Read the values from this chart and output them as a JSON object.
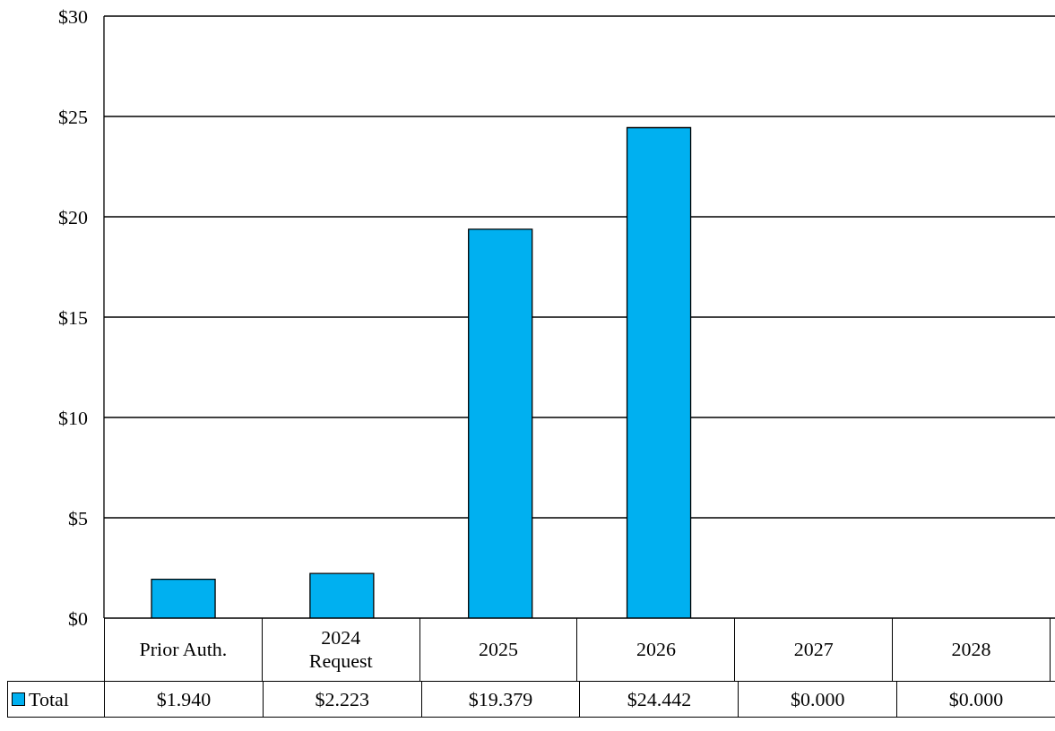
{
  "chart_data": {
    "type": "bar",
    "categories": [
      "Prior Auth.",
      "2024 Request",
      "2025",
      "2026",
      "2027",
      "2028"
    ],
    "series": [
      {
        "name": "Total",
        "color": "#00b0f0",
        "values": [
          1.94,
          2.223,
          19.379,
          24.442,
          0,
          0
        ],
        "value_labels": [
          "$1.940",
          "$2.223",
          "$19.379",
          "$24.442",
          "$0.000",
          "$0.000"
        ]
      }
    ],
    "ylim": [
      0,
      30
    ],
    "yticks": [
      {
        "value": 0,
        "label": "$0"
      },
      {
        "value": 5,
        "label": "$5"
      },
      {
        "value": 10,
        "label": "$10"
      },
      {
        "value": 15,
        "label": "$15"
      },
      {
        "value": 20,
        "label": "$20"
      },
      {
        "value": 25,
        "label": "$25"
      },
      {
        "value": 30,
        "label": "$30"
      }
    ],
    "grid": "y",
    "legend": "bottom"
  }
}
